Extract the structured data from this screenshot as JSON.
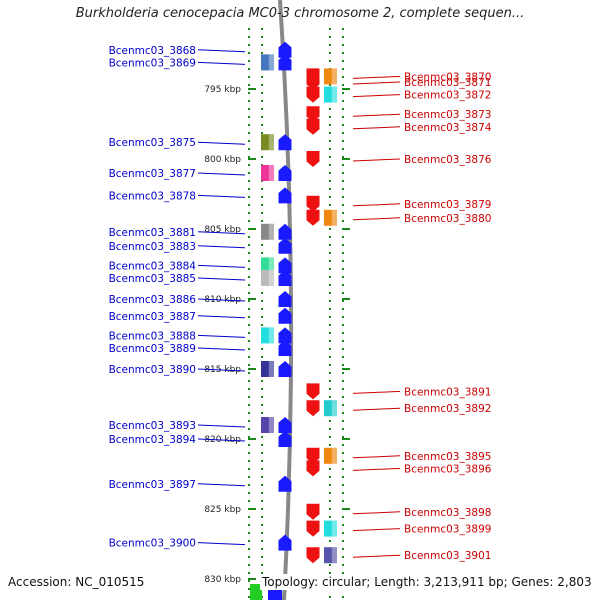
{
  "title": "Burkholderia cenocepacia MC0-3 chromosome 2, complete sequen...",
  "accession": "Accession: NC_010515",
  "summary": "Topology: circular; Length: 3,213,911 bp; Genes: 2,803",
  "colors": {
    "left_label": "#0000cc",
    "right_label": "#cc0000",
    "forward_gene": "#1a1aff",
    "reverse_gene": "#ee1111",
    "track_dots": "#1a8a1a",
    "backbone": "#888888"
  },
  "kbp_ticks": [
    {
      "label": "795 kbp",
      "kbp": 795
    },
    {
      "label": "800 kbp",
      "kbp": 800
    },
    {
      "label": "805 kbp",
      "kbp": 805
    },
    {
      "label": "810 kbp",
      "kbp": 810
    },
    {
      "label": "815 kbp",
      "kbp": 815
    },
    {
      "label": "820 kbp",
      "kbp": 820
    },
    {
      "label": "825 kbp",
      "kbp": 825
    },
    {
      "label": "830 kbp",
      "kbp": 830
    }
  ],
  "left_genes": [
    {
      "label": "Bcenmc03_3868",
      "kbp": 792.2,
      "cog": null
    },
    {
      "label": "Bcenmc03_3869",
      "kbp": 793.1,
      "cog": "#4477bb"
    },
    {
      "label": "Bcenmc03_3875",
      "kbp": 798.8,
      "cog": "#7a8a22"
    },
    {
      "label": "Bcenmc03_3877",
      "kbp": 801.0,
      "cog": "#ee3399"
    },
    {
      "label": "Bcenmc03_3878",
      "kbp": 802.6,
      "cog": null
    },
    {
      "label": "Bcenmc03_3881",
      "kbp": 805.2,
      "cog": "#888888"
    },
    {
      "label": "Bcenmc03_3883",
      "kbp": 806.2,
      "cog": null
    },
    {
      "label": "Bcenmc03_3884",
      "kbp": 807.6,
      "cog": "#33dd99"
    },
    {
      "label": "Bcenmc03_3885",
      "kbp": 808.5,
      "cog": "#bbbbbb"
    },
    {
      "label": "Bcenmc03_3886",
      "kbp": 810.0,
      "cog": null
    },
    {
      "label": "Bcenmc03_3887",
      "kbp": 811.2,
      "cog": null
    },
    {
      "label": "Bcenmc03_3888",
      "kbp": 812.6,
      "cog": "#22dddd"
    },
    {
      "label": "Bcenmc03_3889",
      "kbp": 813.5,
      "cog": null
    },
    {
      "label": "Bcenmc03_3890",
      "kbp": 815.0,
      "cog": "#333399"
    },
    {
      "label": "Bcenmc03_3893",
      "kbp": 819.0,
      "cog": "#5544aa"
    },
    {
      "label": "Bcenmc03_3894",
      "kbp": 820.0,
      "cog": null
    },
    {
      "label": "Bcenmc03_3897",
      "kbp": 823.2,
      "cog": null
    },
    {
      "label": "Bcenmc03_3900",
      "kbp": 827.4,
      "cog": null
    }
  ],
  "right_genes": [
    {
      "label": "Bcenmc03_3870",
      "kbp": 794.1,
      "cog": "#ee8811"
    },
    {
      "label": "Bcenmc03_3871",
      "kbp": 794.5,
      "cog": null
    },
    {
      "label": "Bcenmc03_3872",
      "kbp": 795.4,
      "cog": "#22dddd"
    },
    {
      "label": "Bcenmc03_3873",
      "kbp": 796.8,
      "cog": null
    },
    {
      "label": "Bcenmc03_3874",
      "kbp": 797.7,
      "cog": null
    },
    {
      "label": "Bcenmc03_3876",
      "kbp": 800.0,
      "cog": null
    },
    {
      "label": "Bcenmc03_3879",
      "kbp": 803.2,
      "cog": null
    },
    {
      "label": "Bcenmc03_3880",
      "kbp": 804.2,
      "cog": "#ee8811"
    },
    {
      "label": "Bcenmc03_3891",
      "kbp": 816.6,
      "cog": null
    },
    {
      "label": "Bcenmc03_3892",
      "kbp": 817.8,
      "cog": "#22cccc"
    },
    {
      "label": "Bcenmc03_3895",
      "kbp": 821.2,
      "cog": "#ee8811"
    },
    {
      "label": "Bcenmc03_3896",
      "kbp": 822.1,
      "cog": null
    },
    {
      "label": "Bcenmc03_3898",
      "kbp": 825.2,
      "cog": null
    },
    {
      "label": "Bcenmc03_3899",
      "kbp": 826.4,
      "cog": "#22dddd"
    },
    {
      "label": "Bcenmc03_3901",
      "kbp": 828.3,
      "cog": "#5555aa"
    }
  ]
}
